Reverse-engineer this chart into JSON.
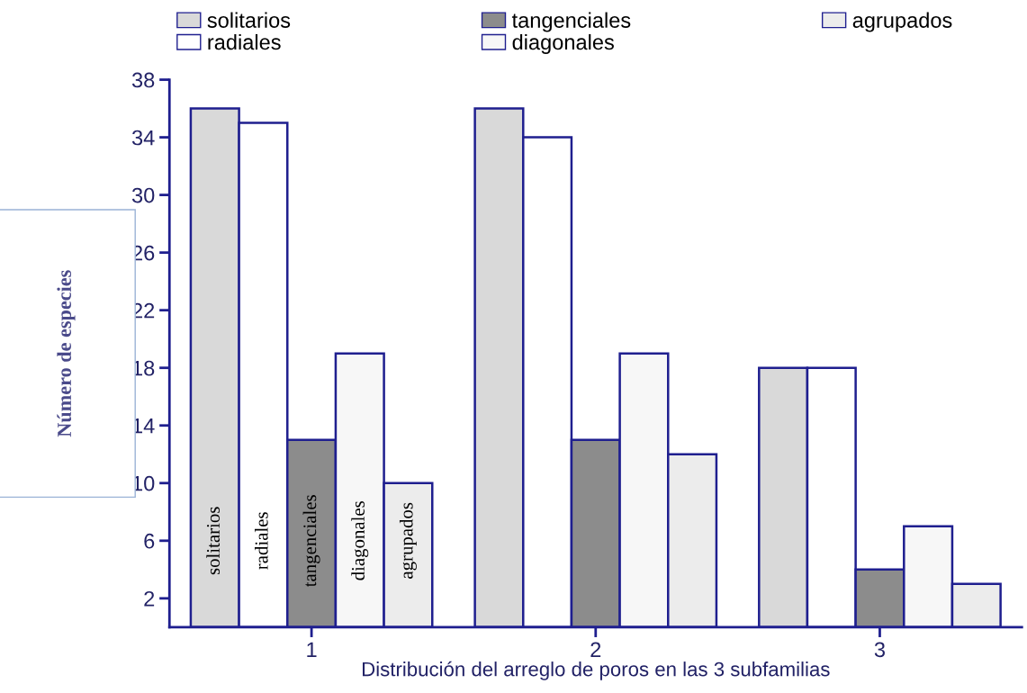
{
  "chart_data": {
    "type": "bar",
    "xlabel": "Distribución del arreglo de poros en las 3 subfamilias",
    "ylabel": "Número de especies",
    "categories": [
      "1",
      "2",
      "3"
    ],
    "series": [
      {
        "name": "solitarios",
        "color": "#d9d9d9",
        "values": [
          36,
          36,
          18
        ]
      },
      {
        "name": "radiales",
        "color": "#ffffff",
        "values": [
          35,
          34,
          18
        ]
      },
      {
        "name": "tangenciales",
        "color": "#8c8c8c",
        "values": [
          13,
          13,
          4
        ]
      },
      {
        "name": "diagonales",
        "color": "#f7f7f7",
        "values": [
          19,
          19,
          7
        ]
      },
      {
        "name": "agrupados",
        "color": "#ececec",
        "values": [
          10,
          12,
          3
        ]
      }
    ],
    "ylim": [
      0,
      38
    ],
    "yticks": [
      2,
      6,
      10,
      14,
      18,
      22,
      26,
      30,
      34,
      38
    ],
    "annotations": [
      "solitarios",
      "radiales",
      "tangenciales",
      "diagonales",
      "agrupados"
    ],
    "legend": "top",
    "grid": false
  }
}
